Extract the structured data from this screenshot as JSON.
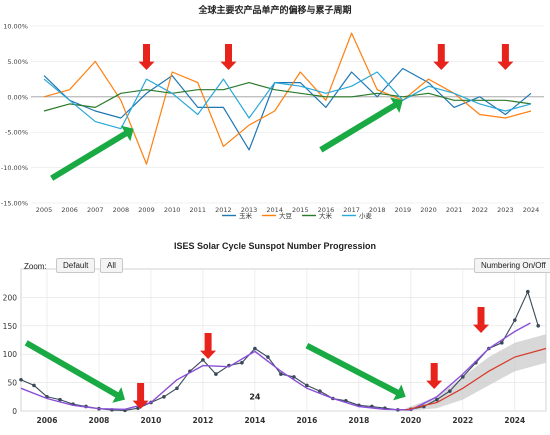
{
  "top_chart": {
    "title": "全球主要农产品单产的偏移与累子周期",
    "legend": [
      {
        "name": "玉米",
        "color": "#1f77b4"
      },
      {
        "name": "大豆",
        "color": "#ff7f0e"
      },
      {
        "name": "大米",
        "color": "#2a7a2a"
      },
      {
        "name": "小麦",
        "color": "#2aa8d8"
      }
    ]
  },
  "bottom_chart": {
    "title": "ISES Solar Cycle Sunspot Number Progression",
    "zoom_label": "Zoom:",
    "zoom_default": "Default",
    "zoom_all": "All",
    "numbering_button": "Numbering On/Off",
    "cycle_label": "24"
  },
  "colors": {
    "arrow_red": "#e8231c",
    "arrow_green": "#1aaa44",
    "observed": "#3a4a5a",
    "smoothed": "#8a4fd8",
    "predicted": "#d63a2a",
    "band": "#c8c8c8"
  },
  "chart_data": [
    {
      "type": "line",
      "title": "全球主要农产品单产的偏移与累子周期",
      "x": [
        2005,
        2006,
        2007,
        2008,
        2009,
        2010,
        2011,
        2012,
        2013,
        2014,
        2015,
        2016,
        2017,
        2018,
        2019,
        2020,
        2021,
        2022,
        2023,
        2024
      ],
      "ylim": [
        -15,
        10
      ],
      "yticks": [
        10,
        5,
        0,
        -5,
        -10,
        -15
      ],
      "ytick_labels": [
        "10.00%",
        "5.00%",
        "0.00%",
        "-5.00%",
        "-10.00%",
        "-15.00%"
      ],
      "series": [
        {
          "name": "玉米",
          "values": [
            3.0,
            -0.5,
            -2.0,
            -3.0,
            0.5,
            3.0,
            -1.5,
            -1.5,
            -7.5,
            2.0,
            2.0,
            -1.5,
            3.5,
            0.0,
            4.0,
            2.0,
            -1.5,
            0.0,
            -2.5,
            0.5
          ]
        },
        {
          "name": "大豆",
          "values": [
            0.0,
            1.0,
            5.0,
            -0.5,
            -9.5,
            3.5,
            2.0,
            -7.0,
            -4.0,
            -2.0,
            3.5,
            -0.5,
            9.0,
            1.0,
            -0.5,
            2.5,
            0.5,
            -2.5,
            -3.0,
            -2.0
          ]
        },
        {
          "name": "大米",
          "values": [
            -2.0,
            -1.0,
            -1.5,
            0.5,
            1.0,
            0.5,
            1.0,
            1.0,
            2.0,
            1.0,
            0.5,
            0.0,
            0.0,
            0.5,
            0.0,
            0.5,
            -0.5,
            -0.5,
            -0.5,
            -1.0
          ]
        },
        {
          "name": "小麦",
          "values": [
            2.5,
            -0.5,
            -3.5,
            -4.5,
            2.5,
            0.5,
            -2.5,
            2.5,
            -3.0,
            2.0,
            1.5,
            0.5,
            1.5,
            3.5,
            -0.5,
            1.5,
            0.5,
            -1.0,
            -2.0,
            -1.0
          ]
        }
      ],
      "annotations": {
        "red_arrows_down_at_year": [
          2009.0,
          2012.2,
          2020.5,
          2023.0
        ],
        "green_arrows_up": [
          {
            "from": [
              2005.3,
              -11.5
            ],
            "to": [
              2008.5,
              -4.5
            ]
          },
          {
            "from": [
              2015.8,
              -7.5
            ],
            "to": [
              2019.0,
              -0.5
            ]
          }
        ]
      }
    },
    {
      "type": "line",
      "title": "ISES Solar Cycle Sunspot Number Progression",
      "xlim": [
        2005,
        2025.2
      ],
      "ylim": [
        0,
        250
      ],
      "xticks": [
        2006,
        2008,
        2010,
        2012,
        2014,
        2016,
        2018,
        2020,
        2022,
        2024
      ],
      "yticks": [
        0,
        50,
        100,
        150,
        200
      ],
      "observed_points": [
        [
          2005.0,
          55
        ],
        [
          2005.5,
          45
        ],
        [
          2006.0,
          25
        ],
        [
          2006.5,
          20
        ],
        [
          2007.0,
          12
        ],
        [
          2007.5,
          8
        ],
        [
          2008.0,
          4
        ],
        [
          2008.5,
          2
        ],
        [
          2009.0,
          1
        ],
        [
          2009.5,
          5
        ],
        [
          2010.0,
          15
        ],
        [
          2010.5,
          25
        ],
        [
          2011.0,
          40
        ],
        [
          2011.5,
          70
        ],
        [
          2012.0,
          90
        ],
        [
          2012.5,
          65
        ],
        [
          2013.0,
          80
        ],
        [
          2013.5,
          85
        ],
        [
          2014.0,
          110
        ],
        [
          2014.5,
          95
        ],
        [
          2015.0,
          65
        ],
        [
          2015.5,
          60
        ],
        [
          2016.0,
          45
        ],
        [
          2016.5,
          35
        ],
        [
          2017.0,
          22
        ],
        [
          2017.5,
          18
        ],
        [
          2018.0,
          10
        ],
        [
          2018.5,
          8
        ],
        [
          2019.0,
          5
        ],
        [
          2019.5,
          2
        ],
        [
          2020.0,
          3
        ],
        [
          2020.5,
          8
        ],
        [
          2021.0,
          20
        ],
        [
          2021.5,
          35
        ],
        [
          2022.0,
          60
        ],
        [
          2022.5,
          85
        ],
        [
          2023.0,
          110
        ],
        [
          2023.5,
          120
        ],
        [
          2024.0,
          160
        ],
        [
          2024.5,
          210
        ],
        [
          2024.9,
          150
        ]
      ],
      "smoothed_points": [
        [
          2005.0,
          40
        ],
        [
          2006.0,
          22
        ],
        [
          2007.0,
          10
        ],
        [
          2008.0,
          4
        ],
        [
          2009.0,
          3
        ],
        [
          2010.0,
          15
        ],
        [
          2011.0,
          55
        ],
        [
          2012.0,
          80
        ],
        [
          2013.0,
          78
        ],
        [
          2014.0,
          105
        ],
        [
          2015.0,
          70
        ],
        [
          2016.0,
          40
        ],
        [
          2017.0,
          22
        ],
        [
          2018.0,
          8
        ],
        [
          2019.0,
          3
        ],
        [
          2020.0,
          2
        ],
        [
          2021.0,
          25
        ],
        [
          2022.0,
          65
        ],
        [
          2023.0,
          110
        ],
        [
          2024.0,
          140
        ],
        [
          2024.6,
          155
        ]
      ],
      "predicted_points": [
        [
          2019.8,
          2
        ],
        [
          2021.0,
          15
        ],
        [
          2022.0,
          40
        ],
        [
          2023.0,
          70
        ],
        [
          2024.0,
          95
        ],
        [
          2025.2,
          110
        ]
      ],
      "band": {
        "lower": [
          [
            2019.8,
            0
          ],
          [
            2021.0,
            5
          ],
          [
            2022.0,
            20
          ],
          [
            2023.0,
            45
          ],
          [
            2024.0,
            70
          ],
          [
            2025.2,
            85
          ]
        ],
        "upper": [
          [
            2019.8,
            5
          ],
          [
            2021.0,
            25
          ],
          [
            2022.0,
            60
          ],
          [
            2023.0,
            95
          ],
          [
            2024.0,
            120
          ],
          [
            2025.2,
            135
          ]
        ]
      },
      "annotations": {
        "cycle_label_at": [
          2014.0,
          20
        ],
        "red_arrows_down_at_year": [
          2009.6,
          2012.2,
          2020.9,
          2022.7
        ],
        "green_arrows_down": [
          {
            "from": [
              2005.2,
              120
            ],
            "to": [
              2009.0,
              20
            ]
          },
          {
            "from": [
              2016.0,
              115
            ],
            "to": [
              2019.8,
              25
            ]
          }
        ]
      }
    }
  ]
}
